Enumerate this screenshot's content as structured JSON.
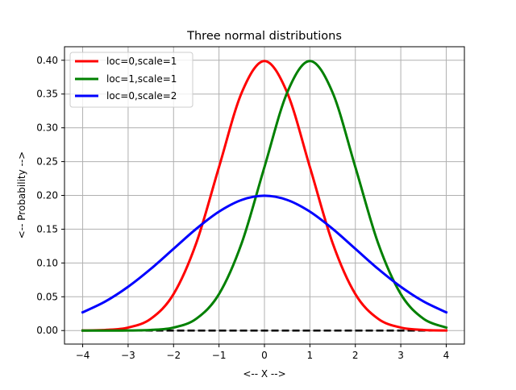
{
  "chart_data": {
    "type": "line",
    "title": "Three normal distributions",
    "xlabel": "<-- X -->",
    "ylabel": "<-- Probability -->",
    "xlim": [
      -4.4,
      4.4
    ],
    "ylim": [
      -0.02,
      0.42
    ],
    "xticks": [
      -4,
      -3,
      -2,
      -1,
      0,
      1,
      2,
      3,
      4
    ],
    "xtick_labels": [
      "−4",
      "−3",
      "−2",
      "−1",
      "0",
      "1",
      "2",
      "3",
      "4"
    ],
    "yticks": [
      0.0,
      0.05,
      0.1,
      0.15,
      0.2,
      0.25,
      0.3,
      0.35,
      0.4
    ],
    "ytick_labels": [
      "0.00",
      "0.05",
      "0.10",
      "0.15",
      "0.20",
      "0.25",
      "0.30",
      "0.35",
      "0.40"
    ],
    "grid": true,
    "legend_position": "top-left",
    "series": [
      {
        "name": "loc=0,scale=1",
        "color": "#ff0000",
        "linewidth": 3,
        "x": [
          -4.0,
          -3.5,
          -3.0,
          -2.5,
          -2.0,
          -1.5,
          -1.0,
          -0.5,
          0.0,
          0.5,
          1.0,
          1.5,
          2.0,
          2.5,
          3.0,
          3.5,
          4.0
        ],
        "y": [
          0.0001,
          0.0009,
          0.0044,
          0.0175,
          0.054,
          0.1295,
          0.242,
          0.3521,
          0.3989,
          0.3521,
          0.242,
          0.1295,
          0.054,
          0.0175,
          0.0044,
          0.0009,
          0.0001
        ]
      },
      {
        "name": "loc=1,scale=1",
        "color": "#008000",
        "linewidth": 3,
        "x": [
          -4.0,
          -3.5,
          -3.0,
          -2.5,
          -2.0,
          -1.5,
          -1.0,
          -0.5,
          0.0,
          0.5,
          1.0,
          1.5,
          2.0,
          2.5,
          3.0,
          3.5,
          4.0
        ],
        "y": [
          0.0,
          0.0,
          0.0001,
          0.0009,
          0.0044,
          0.0175,
          0.054,
          0.1295,
          0.242,
          0.3521,
          0.3989,
          0.3521,
          0.242,
          0.1295,
          0.054,
          0.0175,
          0.0044
        ]
      },
      {
        "name": "loc=0,scale=2",
        "color": "#0000ff",
        "linewidth": 3,
        "x": [
          -4.0,
          -3.5,
          -3.0,
          -2.5,
          -2.0,
          -1.5,
          -1.0,
          -0.5,
          0.0,
          0.5,
          1.0,
          1.5,
          2.0,
          2.5,
          3.0,
          3.5,
          4.0
        ],
        "y": [
          0.027,
          0.0431,
          0.0648,
          0.0913,
          0.121,
          0.1506,
          0.176,
          0.1933,
          0.1995,
          0.1933,
          0.176,
          0.1506,
          0.121,
          0.0913,
          0.0648,
          0.0431,
          0.027
        ]
      }
    ],
    "baseline": {
      "style": "dashed",
      "color": "#000000",
      "x": [
        -4,
        4
      ],
      "y": [
        0,
        0
      ]
    }
  }
}
